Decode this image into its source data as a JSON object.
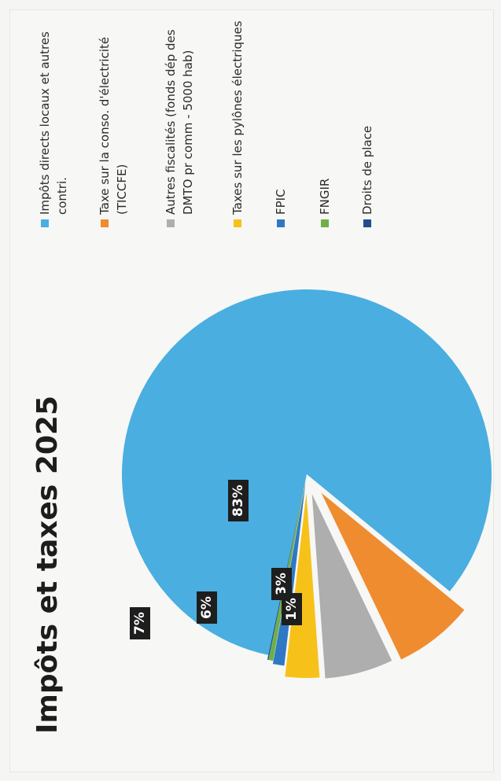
{
  "chart_data": {
    "type": "pie",
    "title": "Impôts et taxes 2025",
    "legend_position": "right",
    "slices": [
      {
        "name": "Impôts directs locaux et autres contri.",
        "value": 83,
        "label": "83%",
        "color": "#4aaee0"
      },
      {
        "name": "Taxe sur la conso. d'électricité (TICCFE)",
        "value": 7,
        "label": "7%",
        "color": "#ef8c2f"
      },
      {
        "name": "Autres fiscalités (fonds dép des DMTO pr comm - 5000 hab)",
        "value": 6,
        "label": "6%",
        "color": "#aeaeae"
      },
      {
        "name": "Taxes sur les pylônes électriques",
        "value": 3,
        "label": "3%",
        "color": "#f6c21a"
      },
      {
        "name": "FPIC",
        "value": 1,
        "label": "1%",
        "color": "#2f78c4"
      },
      {
        "name": "FNGIR",
        "value": 0.4,
        "label": "",
        "color": "#6fb047"
      },
      {
        "name": "Droits de place",
        "value": 0.1,
        "label": "",
        "color": "#1f4f8a"
      }
    ]
  }
}
